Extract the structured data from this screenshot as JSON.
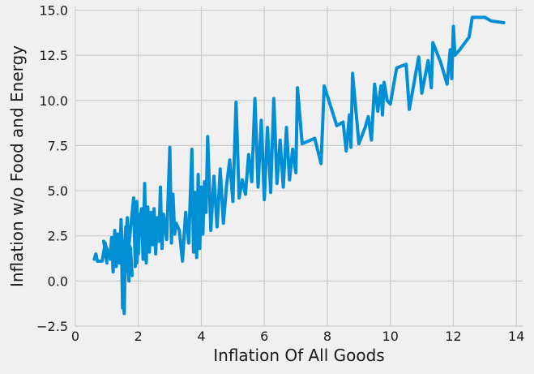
{
  "chart_data": {
    "type": "line",
    "title": "",
    "xlabel": "Inflation Of All Goods",
    "ylabel": "Inflation w/o Food and Energy",
    "xlim": [
      0,
      14.2
    ],
    "ylim": [
      -2.5,
      15.2
    ],
    "xticks": [
      0,
      2,
      4,
      6,
      8,
      10,
      12,
      14
    ],
    "yticks": [
      -2.5,
      0.0,
      2.5,
      5.0,
      7.5,
      10.0,
      12.5,
      15.0
    ],
    "xtick_labels": [
      "0",
      "2",
      "4",
      "6",
      "8",
      "10",
      "12",
      "14"
    ],
    "ytick_labels": [
      "−2.5",
      "0.0",
      "2.5",
      "5.0",
      "7.5",
      "10.0",
      "12.5",
      "15.0"
    ],
    "grid": true,
    "style": "fivethirtyeight",
    "line_color": "#008fd5",
    "background": "#f0f0f0",
    "series": [
      {
        "x": [
          0.6,
          0.65,
          0.7,
          0.85,
          0.95,
          1.0,
          0.9,
          1.05,
          1.1,
          1.15,
          1.2,
          1.25,
          1.3,
          1.35,
          1.4,
          1.45,
          1.5,
          1.45,
          1.55,
          1.6,
          1.5,
          1.65,
          1.7,
          1.6,
          1.75,
          1.8,
          1.7,
          1.85,
          1.9,
          1.95,
          2.0,
          2.05,
          1.95,
          2.1,
          2.15,
          2.2,
          2.25,
          2.3,
          2.35,
          2.4,
          2.45,
          2.5,
          2.55,
          2.6,
          2.65,
          2.7,
          2.75,
          2.8,
          2.9,
          3.0,
          3.05,
          3.1,
          3.15,
          3.2,
          3.3,
          3.4,
          3.5,
          3.6,
          3.7,
          3.75,
          3.8,
          3.85,
          3.9,
          3.95,
          4.0,
          4.05,
          4.1,
          4.15,
          4.2,
          4.3,
          4.4,
          4.5,
          4.6,
          4.7,
          4.8,
          4.9,
          5.0,
          5.1,
          5.2,
          5.3,
          5.4,
          5.5,
          5.6,
          5.7,
          5.8,
          5.9,
          6.0,
          6.1,
          6.2,
          6.3,
          6.4,
          6.5,
          6.6,
          6.7,
          6.8,
          6.9,
          7.0,
          7.05,
          7.2,
          7.6,
          7.8,
          7.9,
          8.3,
          8.5,
          8.6,
          8.7,
          8.75,
          8.8,
          9.0,
          9.2,
          9.3,
          9.4,
          9.5,
          9.6,
          9.7,
          9.75,
          9.8,
          9.9,
          10.0,
          10.2,
          10.5,
          10.6,
          10.9,
          11.0,
          11.2,
          11.3,
          11.35,
          11.6,
          11.8,
          11.9,
          11.95,
          12.0,
          12.05,
          12.2,
          12.5,
          12.6,
          13.0,
          13.2,
          13.6
        ],
        "y": [
          1.2,
          1.5,
          1.1,
          1.1,
          2.1,
          1.0,
          2.2,
          1.6,
          1.2,
          2.4,
          0.5,
          2.8,
          0.8,
          2.6,
          1.0,
          3.3,
          -1.5,
          3.4,
          -1.8,
          3.0,
          -0.5,
          3.5,
          0.0,
          2.5,
          1.8,
          0.3,
          2.0,
          4.6,
          0.8,
          4.4,
          1.5,
          3.7,
          1.0,
          4.0,
          1.2,
          5.4,
          1.0,
          4.1,
          1.6,
          3.8,
          2.0,
          4.0,
          1.5,
          3.5,
          2.2,
          5.2,
          1.8,
          3.7,
          2.3,
          7.4,
          2.1,
          4.8,
          2.6,
          3.2,
          2.8,
          1.1,
          3.8,
          2.1,
          7.3,
          1.6,
          4.9,
          1.3,
          5.9,
          1.8,
          5.2,
          2.6,
          5.5,
          3.8,
          8.0,
          2.8,
          5.8,
          3.0,
          6.2,
          3.2,
          5.3,
          6.7,
          4.4,
          9.9,
          4.6,
          5.6,
          4.8,
          7.0,
          5.5,
          10.1,
          5.2,
          8.9,
          4.5,
          8.5,
          4.9,
          10.1,
          5.4,
          7.8,
          5.2,
          8.5,
          5.6,
          7.3,
          6.0,
          10.7,
          7.6,
          7.9,
          6.5,
          10.8,
          8.6,
          8.8,
          7.2,
          9.2,
          7.4,
          11.5,
          7.6,
          8.5,
          9.1,
          7.8,
          10.9,
          9.4,
          10.8,
          9.2,
          11.0,
          10.0,
          9.8,
          11.8,
          12.0,
          9.5,
          12.4,
          10.4,
          12.2,
          10.7,
          13.2,
          12.1,
          10.9,
          12.8,
          11.2,
          14.1,
          12.5,
          12.8,
          13.5,
          14.6,
          14.6,
          14.4,
          14.3
        ]
      }
    ]
  }
}
